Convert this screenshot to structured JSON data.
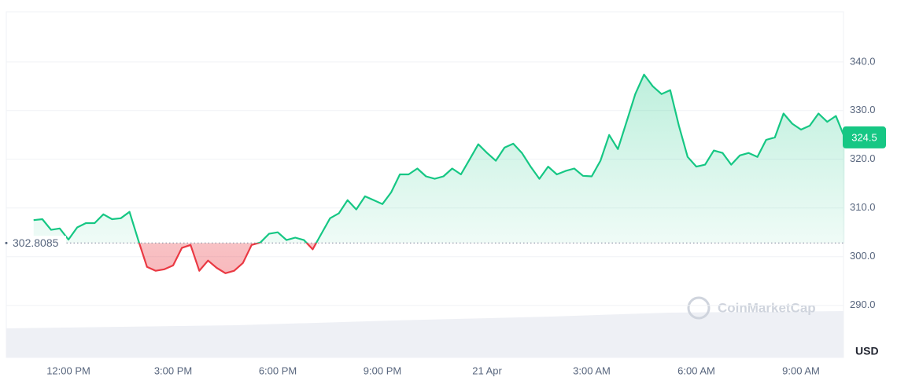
{
  "chart_data": {
    "type": "line",
    "currency": "USD",
    "watermark": "CoinMarketCap",
    "color": "#16c784",
    "negative_color": "#ea3943",
    "baseline": 302.8085,
    "grid": true,
    "ylim": [
      279.3,
      350.3
    ],
    "yticks": [
      {
        "value": 290,
        "label": "290.0"
      },
      {
        "value": 300,
        "label": "300.0"
      },
      {
        "value": 310,
        "label": "310.0"
      },
      {
        "value": 320,
        "label": "320.0"
      },
      {
        "value": 330,
        "label": "330.0"
      },
      {
        "value": 340,
        "label": "340.0"
      }
    ],
    "categories": [
      null,
      null,
      null,
      null,
      "12:00 PM",
      null,
      null,
      null,
      null,
      null,
      null,
      null,
      null,
      null,
      null,
      null,
      "3:00 PM",
      null,
      null,
      null,
      null,
      null,
      null,
      null,
      null,
      null,
      null,
      null,
      "6:00 PM",
      null,
      null,
      null,
      null,
      null,
      null,
      null,
      null,
      null,
      null,
      null,
      "9:00 PM",
      null,
      null,
      null,
      null,
      null,
      null,
      null,
      null,
      null,
      null,
      null,
      "21 Apr",
      null,
      null,
      null,
      null,
      null,
      null,
      null,
      null,
      null,
      null,
      null,
      "3:00 AM",
      null,
      null,
      null,
      null,
      null,
      null,
      null,
      null,
      null,
      null,
      null,
      "6:00 AM",
      null,
      null,
      null,
      null,
      null,
      null,
      null,
      null,
      null,
      null,
      null,
      "9:00 AM",
      null,
      null,
      null,
      null,
      null
    ],
    "values": [
      307.5,
      307.7,
      305.5,
      305.8,
      303.5,
      306.0,
      306.9,
      306.9,
      308.7,
      307.7,
      307.9,
      309.2,
      303.4,
      297.9,
      297.1,
      297.4,
      298.2,
      301.8,
      302.4,
      297.1,
      299.2,
      297.7,
      296.6,
      297.1,
      298.7,
      302.4,
      302.9,
      304.7,
      305.0,
      303.4,
      303.9,
      303.4,
      301.5,
      304.7,
      307.9,
      308.9,
      311.6,
      309.7,
      312.4,
      311.6,
      310.8,
      313.2,
      316.9,
      316.9,
      318.1,
      316.5,
      316.0,
      316.5,
      318.1,
      316.9,
      320.0,
      323.1,
      321.3,
      319.7,
      322.4,
      323.2,
      321.3,
      318.5,
      316.0,
      318.5,
      316.9,
      317.6,
      318.1,
      316.6,
      316.5,
      319.7,
      325.0,
      322.1,
      327.7,
      333.4,
      337.4,
      335.0,
      333.4,
      334.2,
      326.9,
      320.5,
      318.5,
      318.9,
      321.8,
      321.3,
      318.9,
      320.8,
      321.3,
      320.5,
      324.0,
      324.5,
      329.4,
      327.3,
      326.1,
      326.9,
      329.4,
      327.7,
      328.9,
      324.5
    ]
  }
}
